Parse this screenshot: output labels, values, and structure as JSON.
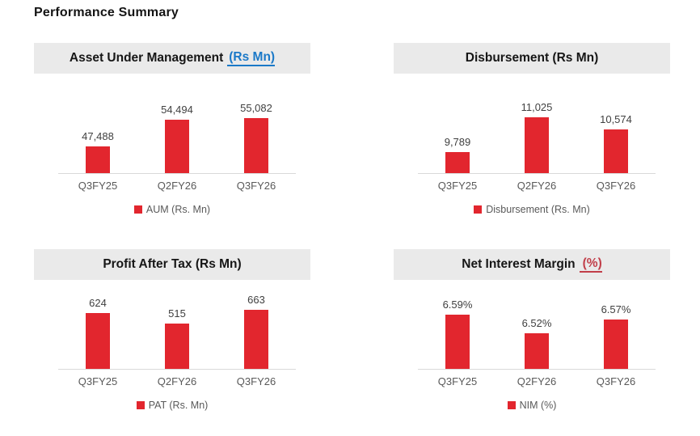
{
  "page_title": "Performance Summary",
  "colors": {
    "bar_red": "#E2262E",
    "header_background": "#EAEAEA",
    "link_blue": "#1B79C8",
    "link_red": "#C13E49",
    "value_label_text": "#404040",
    "muted_text": "#595959",
    "axis_line": "#D9D9D9"
  },
  "chart_data": [
    {
      "type": "bar",
      "title": "Asset Under Management (Rs Mn)",
      "title_main": "Asset Under Management",
      "title_suffix": "(Rs Mn)",
      "categories": [
        "Q3FY25",
        "Q2FY26",
        "Q3FY26"
      ],
      "values": [
        47488,
        54494,
        55082
      ],
      "value_labels": [
        "47,488",
        "54,494",
        "55,082"
      ],
      "legend": "AUM (Rs. Mn)",
      "ylim": [
        40000,
        57000
      ],
      "bar_color": "#E2262E",
      "grid": false,
      "legend_position": "bottom"
    },
    {
      "type": "bar",
      "title": "Disbursement (Rs Mn)",
      "title_main": "Disbursement (Rs Mn)",
      "title_suffix": "",
      "categories": [
        "Q3FY25",
        "Q2FY26",
        "Q3FY26"
      ],
      "values": [
        9789,
        11025,
        10574
      ],
      "value_labels": [
        "9,789",
        "11,025",
        "10,574"
      ],
      "legend": "Disbursement (Rs. Mn)",
      "ylim": [
        9000,
        11250
      ],
      "bar_color": "#E2262E",
      "grid": false,
      "legend_position": "bottom"
    },
    {
      "type": "bar",
      "title": "Profit After Tax (Rs Mn)",
      "title_main": "Profit After Tax (Rs Mn)",
      "title_suffix": "",
      "categories": [
        "Q3FY25",
        "Q2FY26",
        "Q3FY26"
      ],
      "values": [
        624,
        515,
        663
      ],
      "value_labels": [
        "624",
        "515",
        "663"
      ],
      "legend": "PAT (Rs. Mn)",
      "ylim": [
        0,
        700
      ],
      "bar_color": "#E2262E",
      "grid": false,
      "legend_position": "bottom"
    },
    {
      "type": "bar",
      "title": "Net Interest Margin (%)",
      "title_main": "Net Interest Margin",
      "title_suffix": "(%)",
      "categories": [
        "Q3FY25",
        "Q2FY26",
        "Q3FY26"
      ],
      "values": [
        6.59,
        6.52,
        6.57
      ],
      "value_labels": [
        "6.59%",
        "6.52%",
        "6.57%"
      ],
      "legend": "NIM (%)",
      "ylim": [
        6.38,
        6.62
      ],
      "bar_color": "#E2262E",
      "grid": false,
      "legend_position": "bottom"
    }
  ]
}
